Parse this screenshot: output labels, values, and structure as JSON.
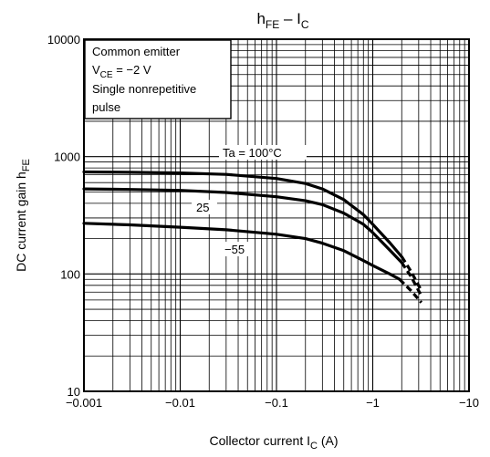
{
  "chart_data": {
    "type": "line",
    "title": {
      "main": "h",
      "sub": "FE",
      "sep": " – ",
      "main2": "I",
      "sub2": "C"
    },
    "xlabel": {
      "text": "Collector current",
      "sym": "I",
      "sub": "C",
      "unit": "(A)"
    },
    "ylabel": {
      "text": "DC current gain",
      "sym": "h",
      "sub": "FE"
    },
    "x_scale": "log",
    "y_scale": "log",
    "x_reversed_sign": true,
    "xlim": [
      -0.001,
      -10
    ],
    "ylim": [
      10,
      10000
    ],
    "x_ticks": [
      {
        "v": -0.001,
        "label": "−0.001"
      },
      {
        "v": -0.01,
        "label": "−0.01"
      },
      {
        "v": -0.1,
        "label": "−0.1"
      },
      {
        "v": -1,
        "label": "−1"
      },
      {
        "v": -10,
        "label": "−10"
      }
    ],
    "y_ticks": [
      {
        "v": 10,
        "label": "10"
      },
      {
        "v": 100,
        "label": "100"
      },
      {
        "v": 1000,
        "label": "1000"
      },
      {
        "v": 10000,
        "label": "10000"
      }
    ],
    "grid": true,
    "annotation": {
      "line1": "Common emitter",
      "line2_sym": "V",
      "line2_sub": "CE",
      "line2_rest": " = −2 V",
      "line3": "Single nonrepetitive",
      "line4": "pulse"
    },
    "series": [
      {
        "name": "Ta = 100°C",
        "x": [
          -0.001,
          -0.003,
          -0.01,
          -0.03,
          -0.1,
          -0.2,
          -0.3,
          -0.5,
          -0.8,
          -1.0,
          -1.5,
          -2.0
        ],
        "y": [
          740,
          735,
          725,
          705,
          650,
          590,
          530,
          430,
          320,
          265,
          185,
          140
        ],
        "dashed_x": [
          -2.0,
          -2.5,
          -3.2
        ],
        "dashed_y": [
          140,
          105,
          72
        ]
      },
      {
        "name": "25",
        "x": [
          -0.001,
          -0.003,
          -0.01,
          -0.03,
          -0.1,
          -0.2,
          -0.3,
          -0.5,
          -0.8,
          -1.0,
          -1.5,
          -2.0
        ],
        "y": [
          530,
          525,
          515,
          495,
          455,
          420,
          390,
          330,
          265,
          225,
          160,
          125
        ],
        "dashed_x": [
          -2.0,
          -2.5,
          -3.2
        ],
        "dashed_y": [
          125,
          95,
          65
        ]
      },
      {
        "name": "−55",
        "x": [
          -0.001,
          -0.003,
          -0.01,
          -0.03,
          -0.1,
          -0.2,
          -0.3,
          -0.5,
          -0.8,
          -1.0,
          -1.5,
          -1.9
        ],
        "y": [
          270,
          262,
          250,
          238,
          218,
          200,
          183,
          158,
          130,
          118,
          100,
          90
        ],
        "dashed_x": [
          -1.9,
          -2.5,
          -3.2
        ],
        "dashed_y": [
          90,
          72,
          57
        ]
      }
    ]
  }
}
